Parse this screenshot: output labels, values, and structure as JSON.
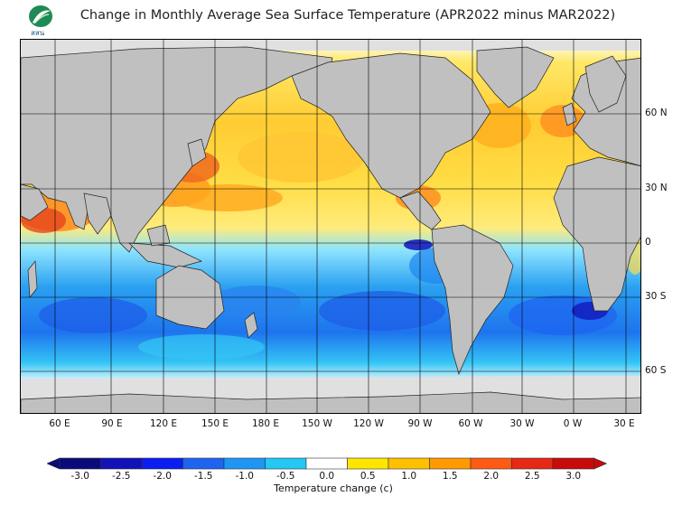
{
  "title": "Change in Monthly Average Sea Surface Temperature (APR2022 minus MAR2022)",
  "logo": {
    "text": "สสน",
    "icon": "leaf-logo-icon"
  },
  "map": {
    "lon_labels": [
      "60 E",
      "90 E",
      "120 E",
      "150 E",
      "180 E",
      "150 W",
      "120 W",
      "90 W",
      "60 W",
      "30 W",
      "0 W",
      "30 E"
    ],
    "lat_labels": [
      "60 N",
      "30 N",
      "0",
      "30 S",
      "60 S"
    ],
    "colors": {
      "land": "#c0c0c0",
      "ice": "#e0e0e0",
      "grid": "#000000"
    }
  },
  "colorbar": {
    "ticks": [
      "-3.0",
      "-2.5",
      "-2.0",
      "-1.5",
      "-1.0",
      "-0.5",
      "0.0",
      "0.5",
      "1.0",
      "1.5",
      "2.0",
      "2.5",
      "3.0"
    ],
    "colors": [
      "#0a0a7a",
      "#1212b8",
      "#0a1ef0",
      "#1e64f0",
      "#1e96f5",
      "#23c8f5",
      "#ffffff",
      "#ffe600",
      "#ffc000",
      "#ff9a00",
      "#ff5a14",
      "#e62814",
      "#c80a0a"
    ],
    "title": "Temperature change  (c)"
  }
}
